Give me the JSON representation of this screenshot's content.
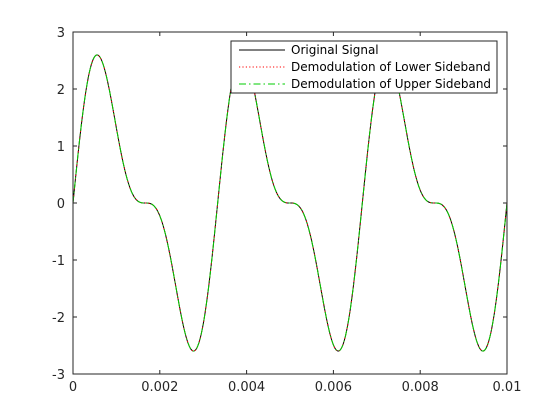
{
  "chart_data": {
    "type": "line",
    "xlim": [
      0,
      0.01
    ],
    "ylim": [
      -3,
      3
    ],
    "xticks": [
      0,
      0.002,
      0.004,
      0.006,
      0.008,
      0.01
    ],
    "xtick_labels": [
      "0",
      "0.002",
      "0.004",
      "0.006",
      "0.008",
      "0.01"
    ],
    "yticks": [
      -3,
      -2,
      -1,
      0,
      1,
      2,
      3
    ],
    "ytick_labels": [
      "-3",
      "-2",
      "-1",
      "0",
      "1",
      "2",
      "3"
    ],
    "grid": false,
    "legend_position": "top-right",
    "signal_model": {
      "description_components": [
        {
          "amplitude": 2,
          "frequency_hz": 300
        },
        {
          "amplitude": 1,
          "frequency_hz": 600
        }
      ],
      "x_start": 0,
      "x_end": 0.01,
      "samples": 401
    },
    "series": [
      {
        "name": "Original Signal",
        "color": "#000000",
        "style": "solid"
      },
      {
        "name": "Demodulation of Lower Sideband",
        "color": "#ff0000",
        "style": "dotted"
      },
      {
        "name": "Demodulation of Upper Sideband",
        "color": "#00cc00",
        "style": "dashdot"
      }
    ]
  }
}
